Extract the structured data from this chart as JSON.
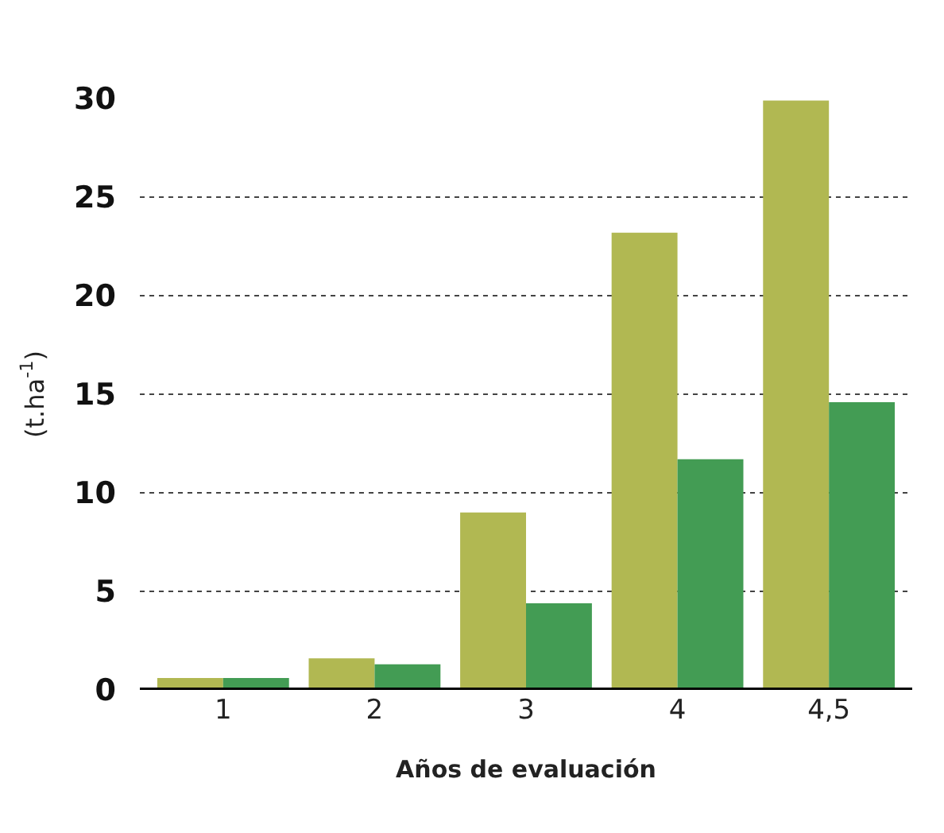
{
  "chart_data": {
    "type": "bar",
    "xlabel": "Años de evaluación",
    "ylabel": "(t.ha$^{-1}$)",
    "categories": [
      "1",
      "2",
      "3",
      "4",
      "4,5"
    ],
    "series": [
      {
        "color": "#b1b852",
        "values": [
          0.6,
          1.6,
          9.0,
          23.2,
          29.9
        ]
      },
      {
        "color": "#439c54",
        "values": [
          0.6,
          1.3,
          4.4,
          11.7,
          14.6
        ]
      }
    ],
    "ylim": [
      0,
      30
    ],
    "yticks": [
      0,
      5,
      10,
      15,
      20,
      25,
      30
    ],
    "grid": "y"
  }
}
